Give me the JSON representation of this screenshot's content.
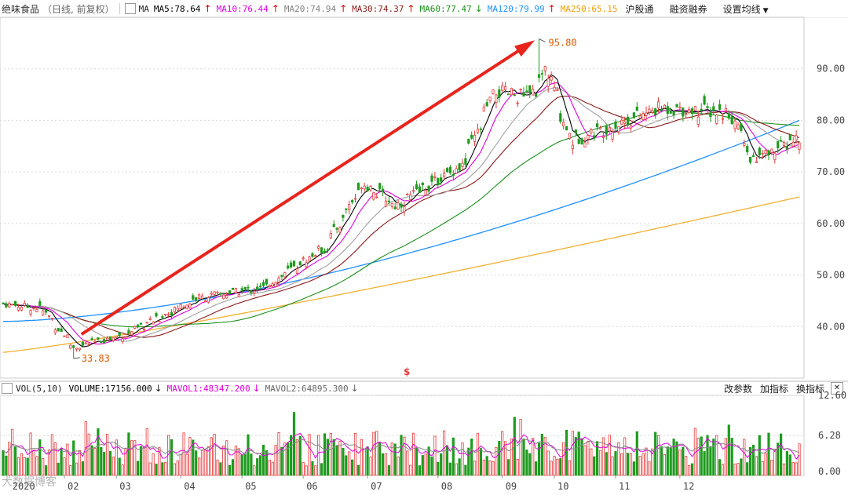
{
  "header": {
    "stock_name": "绝味食品",
    "period_info": "（日线, 前复权）",
    "box_label": "▢",
    "ma_label": "MA",
    "ma_items": [
      {
        "text": "MA5:78.64",
        "color": "#000000",
        "arrow": "↑",
        "arrow_color": "#d40000"
      },
      {
        "text": "MA10:76.44",
        "color": "#e000e0",
        "arrow": "↑",
        "arrow_color": "#d40000"
      },
      {
        "text": "MA20:74.94",
        "color": "#808080",
        "arrow": "↑",
        "arrow_color": "#d40000"
      },
      {
        "text": "MA30:74.37",
        "color": "#8b1a1a",
        "arrow": "↑",
        "arrow_color": "#d40000"
      },
      {
        "text": "MA60:77.47",
        "color": "#1b8f1b",
        "arrow": "↓",
        "arrow_color": "#1b8f1b"
      },
      {
        "text": "MA120:79.99",
        "color": "#1e90ff",
        "arrow": "↑",
        "arrow_color": "#d40000"
      },
      {
        "text": "MA250:65.15",
        "color": "#f0a000",
        "arrow": "",
        "arrow_color": "#d40000"
      }
    ],
    "menus": [
      "沪股通",
      "融资融券",
      "设置均线"
    ],
    "menu_caret": "▼"
  },
  "volume_header": {
    "box_label": "▢",
    "indicator": "VOL(5,10)",
    "volume": "VOLUME:17156.000",
    "volume_arrow": "↓",
    "mavol1": "MAVOL1:48347.200",
    "mavol1_arrow": "↓",
    "mavol2": "MAVOL2:64895.300",
    "mavol2_arrow": "↓",
    "buttons": [
      "改参数",
      "加指标",
      "换指标"
    ],
    "close_label": "✕"
  },
  "price_axis": {
    "ticks": [
      "90.00",
      "80.00",
      "70.00",
      "60.00",
      "50.00",
      "40.00"
    ]
  },
  "volume_axis": {
    "ticks": [
      "12.60",
      "6.28",
      "0.00"
    ]
  },
  "x_axis": {
    "labels": [
      "2020",
      "02",
      "03",
      "04",
      "05",
      "06",
      "07",
      "08",
      "09",
      "10",
      "11",
      "12"
    ]
  },
  "annotations": {
    "high": "95.80",
    "low": "33.83",
    "marker": "$"
  },
  "watermark": "大数据博客",
  "colors": {
    "up": "#e8393a",
    "down": "#1e9b1e",
    "ma5": "#000000",
    "ma10": "#e000e0",
    "ma20": "#a0a0a0",
    "ma30": "#8b1a1a",
    "ma60": "#1b8f1b",
    "ma120": "#1e90ff",
    "ma250": "#f0b030",
    "trend_arrow": "#e8241d",
    "grid": "#d8d8d8"
  },
  "chart_data": {
    "type": "candlestick",
    "title": "绝味食品（日线, 前复权）",
    "price_ylim": [
      30,
      100
    ],
    "volume_ylim": [
      0,
      12.6
    ],
    "months": [
      "2020-01",
      "2020-02",
      "2020-03",
      "2020-04",
      "2020-05",
      "2020-06",
      "2020-07",
      "2020-08",
      "2020-09",
      "2020-10",
      "2020-11",
      "2020-12"
    ],
    "close_anchors": [
      {
        "date": "2020-01-02",
        "close": 44.5
      },
      {
        "date": "2020-01-20",
        "close": 43.5
      },
      {
        "date": "2020-02-04",
        "close": 36.0
      },
      {
        "date": "2020-02-28",
        "close": 38.5
      },
      {
        "date": "2020-03-31",
        "close": 45.5
      },
      {
        "date": "2020-04-30",
        "close": 47.5
      },
      {
        "date": "2020-05-29",
        "close": 55.5
      },
      {
        "date": "2020-06-15",
        "close": 68.0
      },
      {
        "date": "2020-06-30",
        "close": 63.5
      },
      {
        "date": "2020-07-31",
        "close": 71.5
      },
      {
        "date": "2020-08-14",
        "close": 85.5
      },
      {
        "date": "2020-08-31",
        "close": 84.5
      },
      {
        "date": "2020-09-07",
        "close": 90.0
      },
      {
        "date": "2020-09-18",
        "close": 76.0
      },
      {
        "date": "2020-10-30",
        "close": 82.5
      },
      {
        "date": "2020-11-30",
        "close": 81.5
      },
      {
        "date": "2020-12-10",
        "close": 72.0
      },
      {
        "date": "2020-12-31",
        "close": 76.5
      }
    ],
    "high": {
      "date": "2020-09-03",
      "value": 95.8
    },
    "low": {
      "date": "2020-02-04",
      "value": 33.83
    },
    "ma_final": {
      "MA5": 78.64,
      "MA10": 76.44,
      "MA20": 74.94,
      "MA30": 74.37,
      "MA60": 77.47,
      "MA120": 79.99,
      "MA250": 65.15
    },
    "ma250_range": [
      35.0,
      65.15
    ],
    "ma120_range": [
      41.0,
      79.99
    ],
    "volume_last": 17156.0,
    "mavol1_last": 48347.2,
    "mavol2_last": 64895.3
  }
}
